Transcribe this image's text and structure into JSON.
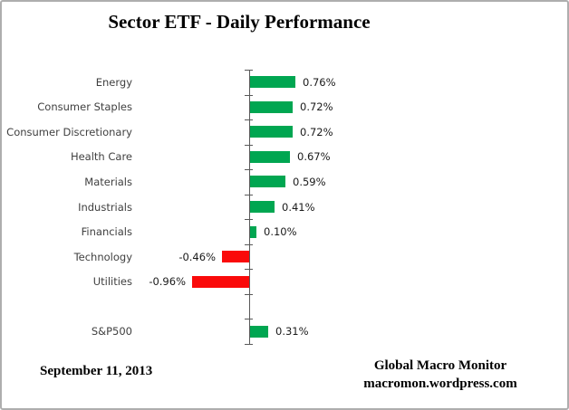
{
  "title": "Sector ETF - Daily Performance",
  "chart_data": {
    "type": "bar",
    "orientation": "horizontal",
    "title": "Sector ETF - Daily Performance",
    "categories": [
      "Energy",
      "Consumer Staples",
      "Consumer Discretionary",
      "Health Care",
      "Materials",
      "Industrials",
      "Financials",
      "Technology",
      "Utilities",
      "",
      "S&P500"
    ],
    "values": [
      0.76,
      0.72,
      0.72,
      0.67,
      0.59,
      0.41,
      0.1,
      -0.46,
      -0.96,
      null,
      0.31
    ],
    "value_labels": [
      "0.76%",
      "0.72%",
      "0.72%",
      "0.67%",
      "0.59%",
      "0.41%",
      "0.10%",
      "-0.46%",
      "-0.96%",
      "",
      "0.31%"
    ],
    "xlabel": "",
    "ylabel": "",
    "xlim": [
      -1.0,
      0.8
    ],
    "grid": false,
    "legend": false,
    "positive_color": "#00A651",
    "negative_color": "#FA0A0A",
    "axis_color": "#595959"
  },
  "footer": {
    "date": "September 11, 2013",
    "credit_line1": "Global Macro Monitor",
    "credit_line2": "macromon.wordpress.com"
  }
}
